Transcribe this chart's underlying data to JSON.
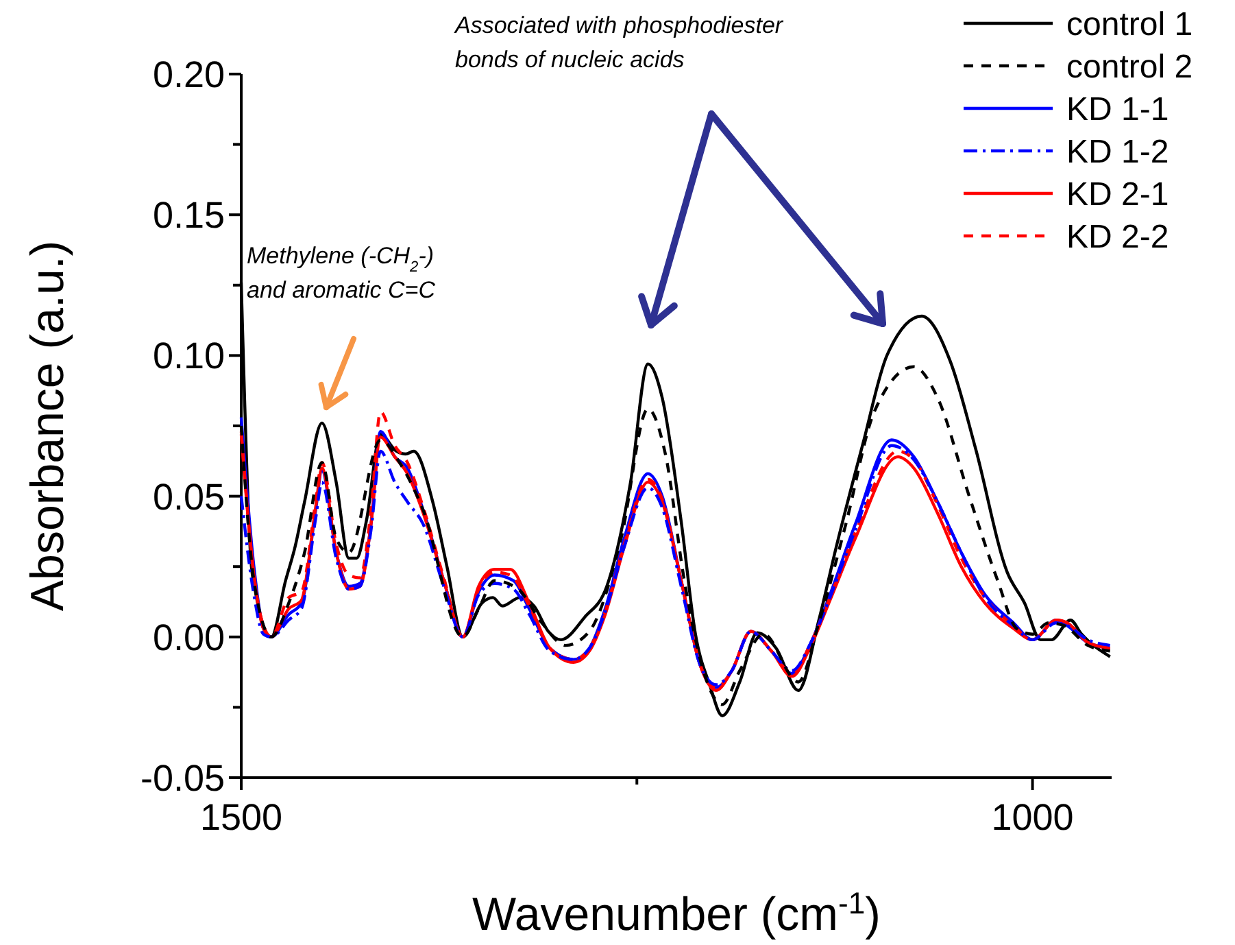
{
  "chart_data": {
    "type": "line",
    "xlabel": "Wavenumber (cm$^{-1}$)",
    "ylabel": "Absorbance (a.u.)",
    "xlim": [
      1500,
      950
    ],
    "xticks": [
      1500,
      {
        "value": 1250,
        "label": null
      },
      1000
    ],
    "ylim": [
      -0.05,
      0.2
    ],
    "yticks": [
      {
        "value": -0.05,
        "label": "-0.05"
      },
      {
        "value": -0.025,
        "label": null
      },
      {
        "value": 0,
        "label": "0.00"
      },
      {
        "value": 0.025,
        "label": null
      },
      {
        "value": 0.05,
        "label": "0.05"
      },
      {
        "value": 0.075,
        "label": null
      },
      {
        "value": 0.1,
        "label": "0.10"
      },
      {
        "value": 0.125,
        "label": null
      },
      {
        "value": 0.15,
        "label": "0.15"
      },
      {
        "value": 0.175,
        "label": null
      },
      {
        "value": 0.2,
        "label": "0.20"
      }
    ],
    "grid": false,
    "legend": "top right",
    "marker": "none",
    "annotations": [
      "Methylene (-CH$_{2}$-)\nand aromatic C=C",
      "Associated with phosphodiester\nbonds of nucleic acids"
    ],
    "series": [
      {
        "name": "control 1",
        "color": "#000000",
        "line_style": "solid",
        "x": [
          1500,
          1494,
          1491,
          1481,
          1472,
          1466,
          1460,
          1449,
          1440,
          1432,
          1427,
          1421,
          1412,
          1402,
          1396,
          1391,
          1379,
          1370,
          1360,
          1348,
          1341,
          1335,
          1324,
          1315,
          1306,
          1298,
          1283,
          1269,
          1254,
          1243,
          1234,
          1222,
          1213,
          1204,
          1196,
          1185,
          1174,
          1162,
          1148,
          1135,
          1124,
          1107,
          1092,
          1070,
          1052,
          1036,
          1016,
          1005,
          995,
          988,
          976,
          969,
          951
        ],
        "values": [
          0.126,
          0.028,
          0.016,
          0,
          0.02,
          0.032,
          0.048,
          0.076,
          0.055,
          0.028,
          0.028,
          0.041,
          0.072,
          0.066,
          0.065,
          0.066,
          0.048,
          0.025,
          0,
          0.012,
          0.014,
          0.011,
          0.014,
          0.011,
          0.002,
          -0.001,
          0.007,
          0.018,
          0.055,
          0.097,
          0.085,
          0.041,
          0.001,
          -0.017,
          -0.028,
          -0.016,
          0.0015,
          -0.004,
          -0.019,
          0.006,
          0.032,
          0.069,
          0.1,
          0.114,
          0.098,
          0.067,
          0.023,
          0.012,
          -0.001,
          -0.001,
          0.006,
          0.001,
          -0.007
        ]
      },
      {
        "name": "control 2",
        "color": "#000000",
        "line_style": "dashed",
        "x": [
          1500,
          1492,
          1481,
          1470,
          1460,
          1449,
          1440,
          1432,
          1412,
          1400,
          1385,
          1360,
          1350,
          1340,
          1325,
          1310,
          1295,
          1280,
          1260,
          1243,
          1232,
          1220,
          1208,
          1196,
          1185,
          1170,
          1148,
          1135,
          1118,
          1100,
          1075,
          1060,
          1040,
          1022,
          1010,
          1000,
          990,
          980,
          965,
          951
        ],
        "values": [
          0.075,
          0.02,
          0,
          0.012,
          0.03,
          0.062,
          0.035,
          0.03,
          0.07,
          0.062,
          0.045,
          0,
          0.01,
          0.02,
          0.017,
          0.005,
          -0.003,
          0.002,
          0.035,
          0.081,
          0.065,
          0.02,
          -0.012,
          -0.024,
          -0.012,
          0.001,
          -0.016,
          0.005,
          0.04,
          0.08,
          0.096,
          0.085,
          0.05,
          0.02,
          0.003,
          0.001,
          0.005,
          0.004,
          -0.003,
          -0.005
        ]
      },
      {
        "name": "KD 1-1",
        "color": "#0000ff",
        "line_style": "solid",
        "x": [
          1500,
          1492,
          1486,
          1481,
          1470,
          1462,
          1453,
          1449,
          1440,
          1432,
          1425,
          1418,
          1412,
          1403,
          1395,
          1385,
          1372,
          1360,
          1350,
          1340,
          1328,
          1318,
          1305,
          1290,
          1280,
          1270,
          1258,
          1243,
          1234,
          1222,
          1210,
          1200,
          1190,
          1178,
          1165,
          1152,
          1140,
          1128,
          1112,
          1089,
          1075,
          1060,
          1045,
          1030,
          1012,
          1000,
          985,
          978,
          965,
          951
        ],
        "values": [
          0.078,
          0.025,
          0.003,
          0,
          0.008,
          0.012,
          0.045,
          0.059,
          0.03,
          0.018,
          0.019,
          0.04,
          0.073,
          0.064,
          0.06,
          0.045,
          0.02,
          0,
          0.016,
          0.022,
          0.02,
          0.01,
          -0.004,
          -0.008,
          -0.004,
          0.01,
          0.035,
          0.058,
          0.05,
          0.02,
          -0.01,
          -0.018,
          -0.012,
          0.002,
          -0.005,
          -0.013,
          -0.002,
          0.015,
          0.04,
          0.07,
          0.064,
          0.048,
          0.03,
          0.015,
          0.005,
          -0.001,
          0.006,
          0.004,
          -0.002,
          -0.004
        ]
      },
      {
        "name": "KD 1-2",
        "color": "#0000ff",
        "line_style": "dashdot",
        "x": [
          1500,
          1492,
          1486,
          1481,
          1470,
          1462,
          1453,
          1449,
          1440,
          1432,
          1425,
          1418,
          1412,
          1403,
          1395,
          1385,
          1372,
          1360,
          1350,
          1340,
          1328,
          1318,
          1305,
          1290,
          1280,
          1270,
          1258,
          1243,
          1234,
          1222,
          1210,
          1200,
          1190,
          1178,
          1165,
          1152,
          1140,
          1128,
          1112,
          1089,
          1075,
          1060,
          1045,
          1030,
          1012,
          1000,
          985,
          978,
          965,
          951
        ],
        "values": [
          0.05,
          0.015,
          0.001,
          0,
          0.006,
          0.01,
          0.042,
          0.055,
          0.028,
          0.017,
          0.018,
          0.038,
          0.066,
          0.055,
          0.048,
          0.04,
          0.018,
          0,
          0.015,
          0.019,
          0.017,
          0.008,
          -0.005,
          -0.008,
          -0.004,
          0.009,
          0.032,
          0.053,
          0.046,
          0.018,
          -0.01,
          -0.017,
          -0.012,
          0.002,
          -0.005,
          -0.012,
          -0.002,
          0.014,
          0.038,
          0.068,
          0.063,
          0.048,
          0.03,
          0.014,
          0.004,
          -0.001,
          0.005,
          0.004,
          -0.001,
          -0.003
        ]
      },
      {
        "name": "KD 2-1",
        "color": "#ff0000",
        "line_style": "solid",
        "x": [
          1500,
          1492,
          1486,
          1481,
          1470,
          1462,
          1453,
          1449,
          1440,
          1432,
          1425,
          1418,
          1412,
          1403,
          1395,
          1385,
          1372,
          1360,
          1350,
          1340,
          1330,
          1318,
          1305,
          1290,
          1280,
          1270,
          1258,
          1243,
          1234,
          1222,
          1210,
          1200,
          1190,
          1178,
          1165,
          1152,
          1140,
          1128,
          1112,
          1085,
          1075,
          1060,
          1045,
          1030,
          1012,
          1000,
          985,
          978,
          965,
          951
        ],
        "values": [
          0.073,
          0.022,
          0.003,
          0,
          0.01,
          0.013,
          0.046,
          0.06,
          0.03,
          0.017,
          0.018,
          0.04,
          0.071,
          0.064,
          0.058,
          0.044,
          0.02,
          0,
          0.018,
          0.024,
          0.024,
          0.012,
          -0.004,
          -0.009,
          -0.005,
          0.008,
          0.032,
          0.055,
          0.048,
          0.02,
          -0.01,
          -0.019,
          -0.012,
          0.002,
          -0.005,
          -0.014,
          -0.003,
          0.013,
          0.035,
          0.064,
          0.06,
          0.044,
          0.025,
          0.012,
          0.003,
          -0.001,
          0.006,
          0.005,
          -0.002,
          -0.004
        ]
      },
      {
        "name": "KD 2-2",
        "color": "#ff0000",
        "line_style": "dashed",
        "x": [
          1500,
          1492,
          1486,
          1481,
          1470,
          1462,
          1453,
          1449,
          1440,
          1432,
          1425,
          1418,
          1412,
          1403,
          1395,
          1385,
          1372,
          1360,
          1350,
          1340,
          1330,
          1318,
          1305,
          1290,
          1280,
          1270,
          1258,
          1243,
          1234,
          1222,
          1210,
          1200,
          1190,
          1178,
          1165,
          1152,
          1140,
          1128,
          1112,
          1085,
          1075,
          1060,
          1045,
          1030,
          1012,
          1000,
          985,
          978,
          965,
          951
        ],
        "values": [
          0.072,
          0.022,
          0.004,
          0,
          0.014,
          0.016,
          0.048,
          0.062,
          0.033,
          0.022,
          0.021,
          0.045,
          0.08,
          0.068,
          0.062,
          0.046,
          0.021,
          0,
          0.017,
          0.023,
          0.022,
          0.011,
          -0.004,
          -0.008,
          -0.004,
          0.009,
          0.033,
          0.056,
          0.049,
          0.02,
          -0.01,
          -0.018,
          -0.012,
          0.002,
          -0.005,
          -0.013,
          -0.002,
          0.014,
          0.037,
          0.066,
          0.063,
          0.047,
          0.028,
          0.014,
          0.004,
          -0.001,
          0.006,
          0.005,
          -0.002,
          -0.004
        ]
      }
    ]
  }
}
